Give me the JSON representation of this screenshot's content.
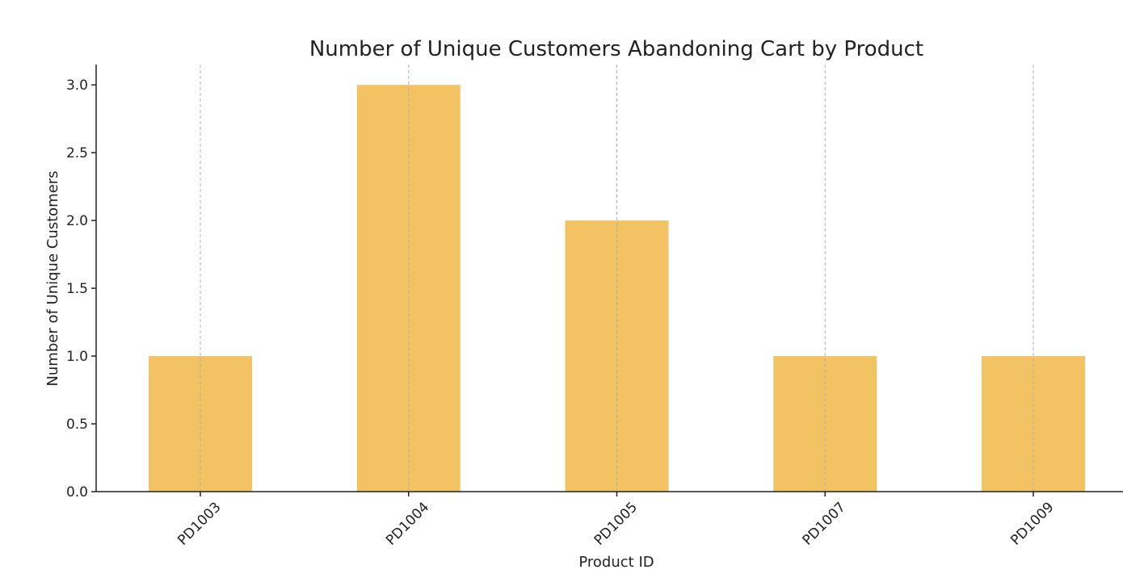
{
  "chart_data": {
    "type": "bar",
    "title": "Number of Unique Customers Abandoning Cart by Product",
    "xlabel": "Product ID",
    "ylabel": "Number of Unique Customers",
    "categories": [
      "PD1003",
      "PD1004",
      "PD1005",
      "PD1007",
      "PD1009"
    ],
    "values": [
      1,
      3,
      2,
      1,
      1
    ],
    "ylim": [
      0,
      3.15
    ],
    "yticks": [
      "0.0",
      "0.5",
      "1.0",
      "1.5",
      "2.0",
      "2.5",
      "3.0"
    ],
    "grid": "vertical dashed at category positions",
    "bar_color": "#F2C263",
    "legend": "none"
  }
}
